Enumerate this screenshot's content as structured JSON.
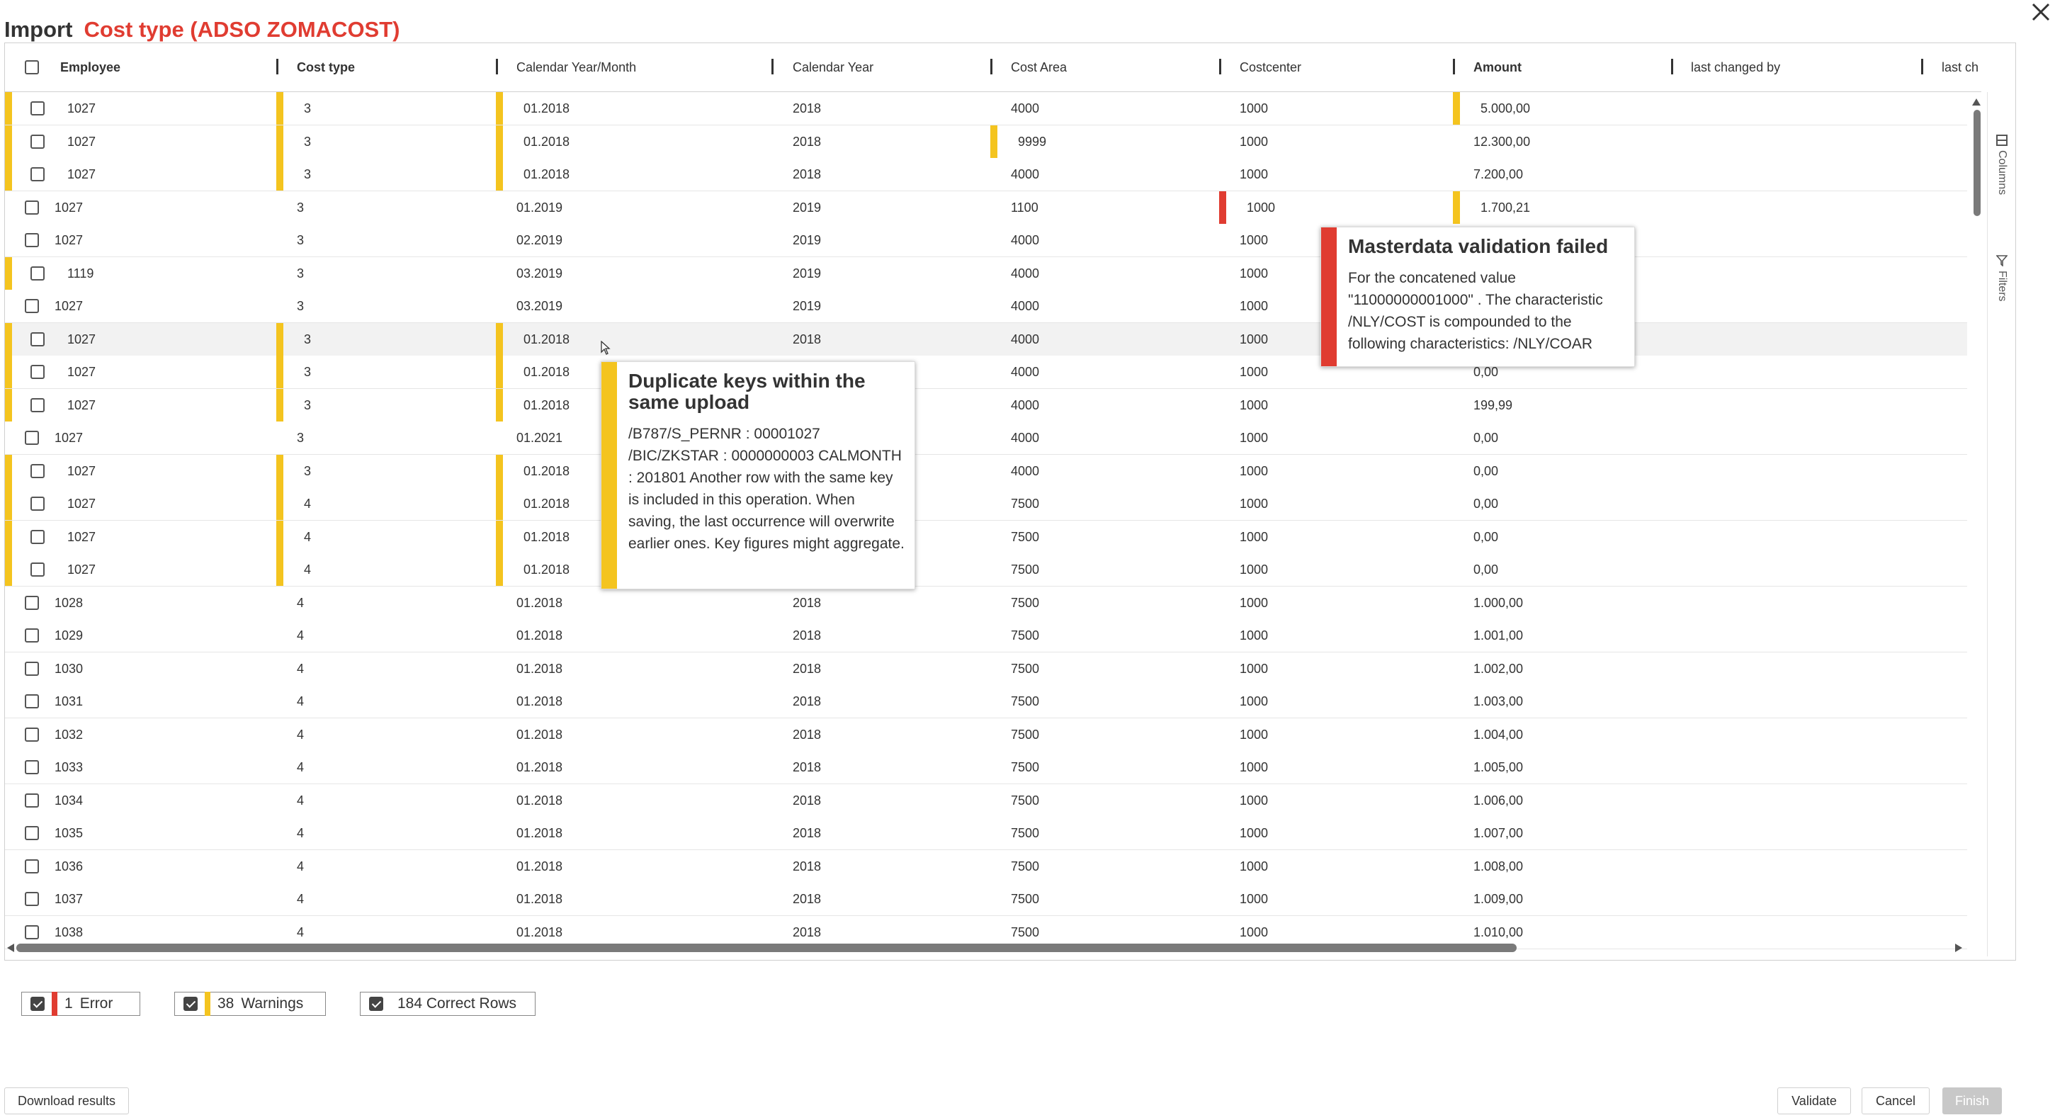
{
  "dialog": {
    "title_label": "Import",
    "title_subject": "Cost type (ADSO ZOMACOST)"
  },
  "columns": [
    "Employee",
    "Cost type",
    "Calendar Year/Month",
    "Calendar Year",
    "Cost Area",
    "Costcenter",
    "Amount",
    "last changed by",
    "last ch"
  ],
  "rows": [
    [
      "1027",
      "3",
      "01.2018",
      "2018",
      "4000",
      "1000",
      "5.000,00"
    ],
    [
      "1027",
      "3",
      "01.2018",
      "2018",
      "9999",
      "1000",
      "12.300,00"
    ],
    [
      "1027",
      "3",
      "01.2018",
      "2018",
      "4000",
      "1000",
      "7.200,00"
    ],
    [
      "1027",
      "3",
      "01.2019",
      "2019",
      "1100",
      "1000",
      "1.700,21"
    ],
    [
      "1027",
      "3",
      "02.2019",
      "2019",
      "4000",
      "1000",
      ""
    ],
    [
      "1119",
      "3",
      "03.2019",
      "2019",
      "4000",
      "1000",
      ""
    ],
    [
      "1027",
      "3",
      "03.2019",
      "2019",
      "4000",
      "1000",
      ""
    ],
    [
      "1027",
      "3",
      "01.2018",
      "2018",
      "4000",
      "1000",
      ""
    ],
    [
      "1027",
      "3",
      "01.2018",
      "",
      "4000",
      "1000",
      "0,00"
    ],
    [
      "1027",
      "3",
      "01.2018",
      "",
      "4000",
      "1000",
      "199,99"
    ],
    [
      "1027",
      "3",
      "01.2021",
      "",
      "4000",
      "1000",
      "0,00"
    ],
    [
      "1027",
      "3",
      "01.2018",
      "",
      "4000",
      "1000",
      "0,00"
    ],
    [
      "1027",
      "4",
      "01.2018",
      "",
      "7500",
      "1000",
      "0,00"
    ],
    [
      "1027",
      "4",
      "01.2018",
      "",
      "7500",
      "1000",
      "0,00"
    ],
    [
      "1027",
      "4",
      "01.2018",
      "",
      "7500",
      "1000",
      "0,00"
    ],
    [
      "1028",
      "4",
      "01.2018",
      "2018",
      "7500",
      "1000",
      "1.000,00"
    ],
    [
      "1029",
      "4",
      "01.2018",
      "2018",
      "7500",
      "1000",
      "1.001,00"
    ],
    [
      "1030",
      "4",
      "01.2018",
      "2018",
      "7500",
      "1000",
      "1.002,00"
    ],
    [
      "1031",
      "4",
      "01.2018",
      "2018",
      "7500",
      "1000",
      "1.003,00"
    ],
    [
      "1032",
      "4",
      "01.2018",
      "2018",
      "7500",
      "1000",
      "1.004,00"
    ],
    [
      "1033",
      "4",
      "01.2018",
      "2018",
      "7500",
      "1000",
      "1.005,00"
    ],
    [
      "1034",
      "4",
      "01.2018",
      "2018",
      "7500",
      "1000",
      "1.006,00"
    ],
    [
      "1035",
      "4",
      "01.2018",
      "2018",
      "7500",
      "1000",
      "1.007,00"
    ],
    [
      "1036",
      "4",
      "01.2018",
      "2018",
      "7500",
      "1000",
      "1.008,00"
    ],
    [
      "1037",
      "4",
      "01.2018",
      "2018",
      "7500",
      "1000",
      "1.009,00"
    ],
    [
      "1038",
      "4",
      "01.2018",
      "2018",
      "7500",
      "1000",
      "1.010,00"
    ]
  ],
  "row_marks": [
    [
      "warn",
      "warn",
      "warn",
      "",
      "",
      "",
      "warn"
    ],
    [
      "warn",
      "warn",
      "warn",
      "",
      "warn",
      "",
      ""
    ],
    [
      "warn",
      "warn",
      "warn",
      "",
      "",
      "",
      ""
    ],
    [
      "",
      "",
      "",
      "",
      "",
      "err",
      "warn"
    ],
    [
      "",
      "",
      "",
      "",
      "",
      "",
      ""
    ],
    [
      "warn",
      "",
      "",
      "",
      "",
      "",
      ""
    ],
    [
      "",
      "",
      "",
      "",
      "",
      "",
      ""
    ],
    [
      "warn",
      "warn",
      "warn",
      "",
      "",
      "",
      ""
    ],
    [
      "warn",
      "warn",
      "warn",
      "",
      "",
      "",
      ""
    ],
    [
      "warn",
      "warn",
      "warn",
      "",
      "",
      "",
      ""
    ],
    [
      "",
      "",
      "",
      "",
      "",
      "",
      ""
    ],
    [
      "warn",
      "warn",
      "warn",
      "",
      "",
      "",
      ""
    ],
    [
      "warn",
      "warn",
      "warn",
      "",
      "",
      "",
      ""
    ],
    [
      "warn",
      "warn",
      "warn",
      "",
      "",
      "",
      ""
    ],
    [
      "warn",
      "warn",
      "warn",
      "",
      "",
      "",
      ""
    ],
    [
      "",
      "",
      "",
      "",
      "",
      "",
      ""
    ],
    [
      "",
      "",
      "",
      "",
      "",
      "",
      ""
    ],
    [
      "",
      "",
      "",
      "",
      "",
      "",
      ""
    ],
    [
      "",
      "",
      "",
      "",
      "",
      "",
      ""
    ],
    [
      "",
      "",
      "",
      "",
      "",
      "",
      ""
    ],
    [
      "",
      "",
      "",
      "",
      "",
      "",
      ""
    ],
    [
      "",
      "",
      "",
      "",
      "",
      "",
      ""
    ],
    [
      "",
      "",
      "",
      "",
      "",
      "",
      ""
    ],
    [
      "",
      "",
      "",
      "",
      "",
      "",
      ""
    ],
    [
      "",
      "",
      "",
      "",
      "",
      "",
      ""
    ],
    [
      "",
      "",
      "",
      "",
      "",
      "",
      ""
    ]
  ],
  "hovered_row": 7,
  "side_tabs": {
    "columns": "Columns",
    "filters": "Filters"
  },
  "tooltips": {
    "duplicate": {
      "title": "Duplicate keys within the same upload",
      "body": "/B787/S_PERNR : 00001027 /BIC/ZKSTAR : 0000000003 CALMONTH : 201801 Another row with the same key is included in this operation. When saving, the last occurrence will overwrite earlier ones. Key figures might aggregate."
    },
    "masterdata": {
      "title": "Masterdata validation failed",
      "body": "For the concatened value \"11000000001000\" . The characteristic /NLY/COST is compounded to the following characteristics: /NLY/COAR"
    }
  },
  "summary": {
    "error": {
      "count": "1",
      "label": "Error"
    },
    "warnings": {
      "count": "38",
      "label": "Warnings"
    },
    "correct": {
      "label": "184 Correct Rows"
    }
  },
  "buttons": {
    "download": "Download results",
    "validate": "Validate",
    "cancel": "Cancel",
    "finish": "Finish"
  },
  "colors": {
    "error": "#e03c31",
    "warning": "#f4c41f",
    "title_accent": "#e03c31"
  }
}
